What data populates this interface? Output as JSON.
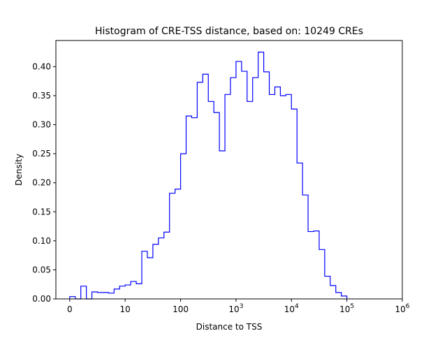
{
  "chart_data": {
    "type": "histogram",
    "title": "Histogram of CRE-TSS distance, based on: 10249 CREs",
    "xlabel": "Distance to TSS",
    "ylabel": "Density",
    "x_scale": "symlog",
    "xlim": [
      -0.25,
      6.0
    ],
    "ylim": [
      0,
      0.445
    ],
    "x_ticks": [
      {
        "value": 0,
        "label": "0"
      },
      {
        "value": 10,
        "label": "10"
      },
      {
        "value": 100,
        "label": "100"
      },
      {
        "value": 1000,
        "label": "10",
        "sup": "3"
      },
      {
        "value": 10000,
        "label": "10",
        "sup": "4"
      },
      {
        "value": 100000,
        "label": "10",
        "sup": "5"
      },
      {
        "value": 1000000,
        "label": "10",
        "sup": "6"
      }
    ],
    "y_ticks": [
      "0.00",
      "0.05",
      "0.10",
      "0.15",
      "0.20",
      "0.25",
      "0.30",
      "0.35",
      "0.40"
    ],
    "grid": false,
    "legend": "none",
    "color": "#0000ff",
    "bin_width_log10": 0.1,
    "bins_start_log10": 0.0,
    "densities": [
      0.004,
      0.0,
      0.022,
      0.0,
      0.012,
      0.011,
      0.011,
      0.01,
      0.017,
      0.022,
      0.024,
      0.03,
      0.026,
      0.082,
      0.071,
      0.094,
      0.105,
      0.115,
      0.182,
      0.189,
      0.25,
      0.315,
      0.312,
      0.373,
      0.387,
      0.34,
      0.321,
      0.255,
      0.352,
      0.381,
      0.409,
      0.392,
      0.34,
      0.381,
      0.425,
      0.391,
      0.352,
      0.365,
      0.35,
      0.352,
      0.327,
      0.234,
      0.179,
      0.116,
      0.117,
      0.085,
      0.039,
      0.023,
      0.011,
      0.005
    ]
  }
}
